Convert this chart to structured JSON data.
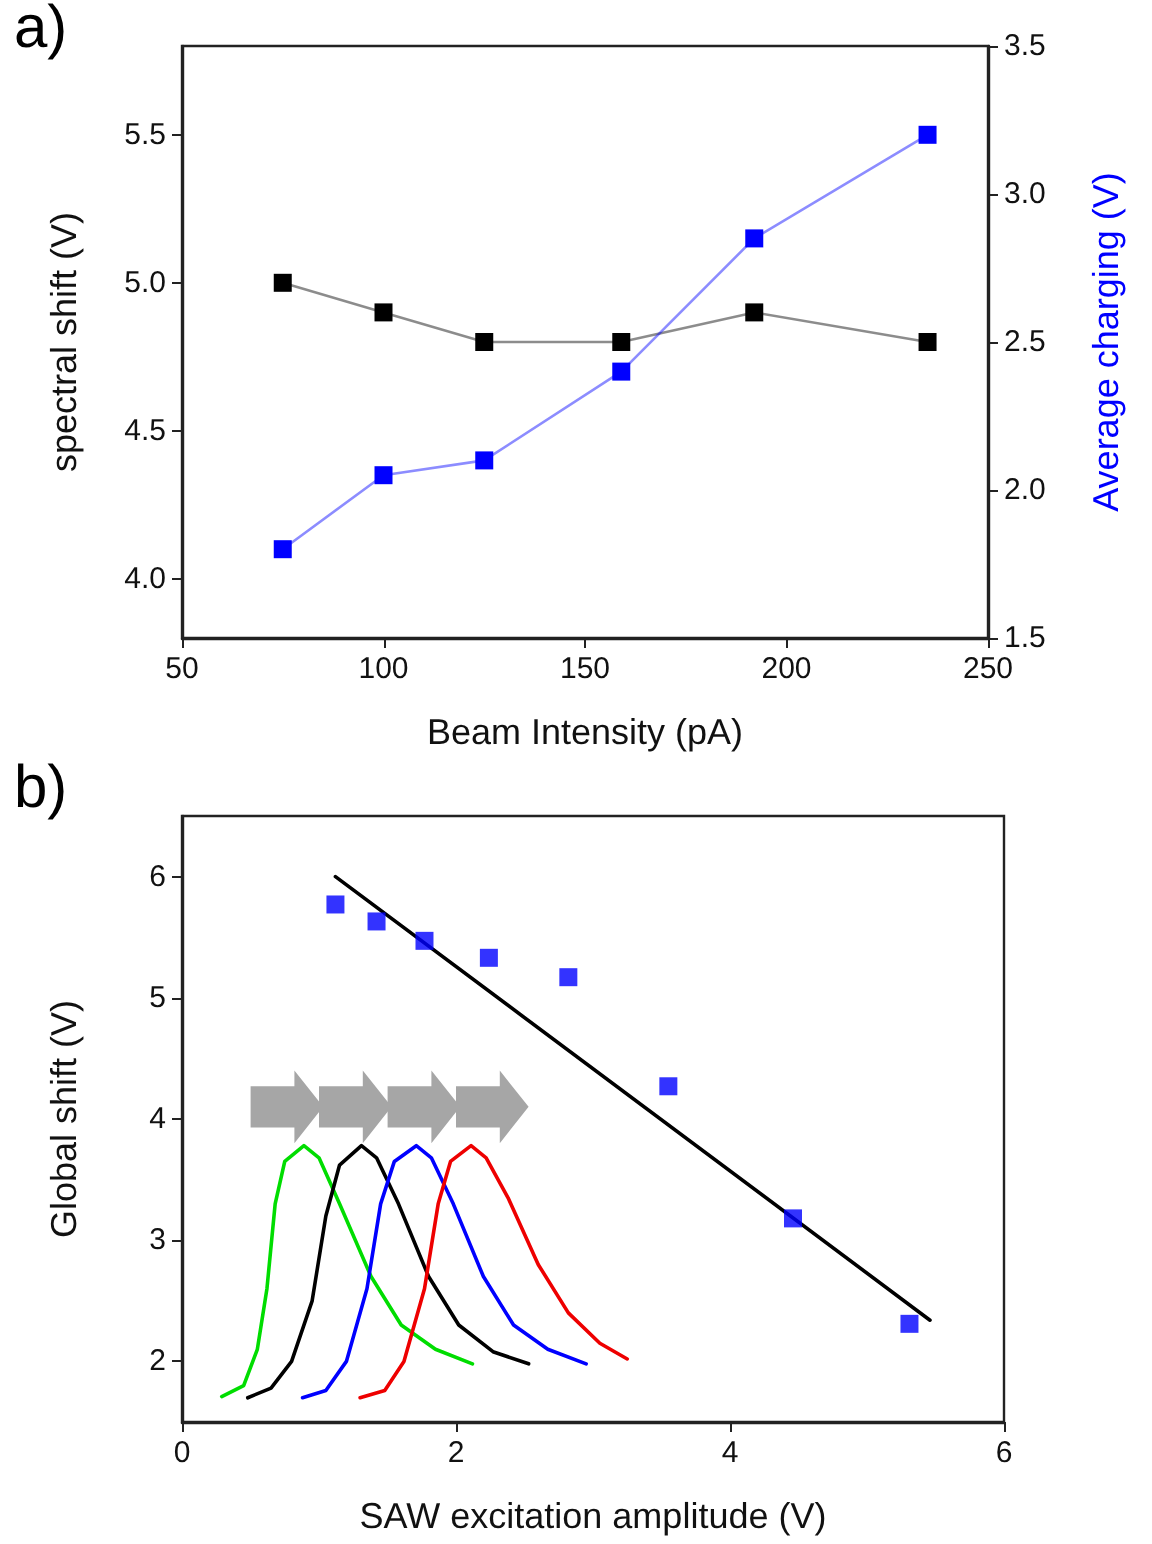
{
  "chart_data": [
    {
      "type": "line",
      "title": "a)",
      "xlabel": "Beam Intensity (pA)",
      "ylabel": "spectral shift (V)",
      "y2label": "Average charging (V)",
      "x": [
        75,
        100,
        125,
        159,
        192,
        235
      ],
      "series": [
        {
          "color": "#000000",
          "values": [
            5.0,
            4.9,
            4.8,
            4.8,
            4.9,
            4.8
          ]
        },
        {
          "color": "#0000ff",
          "axis": "y2",
          "values": [
            1.8,
            2.05,
            2.1,
            2.4,
            2.85,
            3.2
          ]
        }
      ],
      "xlim": [
        50,
        250
      ],
      "xticks": [
        50,
        100,
        150,
        200,
        250
      ],
      "ylim": [
        3.8,
        5.8
      ],
      "yticks": [
        {
          "value": 4,
          "label": "4.0"
        },
        {
          "value": 4.5,
          "label": "4.5"
        },
        {
          "value": 5,
          "label": "5.0"
        },
        {
          "value": 5.5,
          "label": "5.5"
        }
      ],
      "y2lim": [
        1.5,
        3.5
      ],
      "y2ticks": [
        {
          "value": 1.5,
          "label": "1.5"
        },
        {
          "value": 2,
          "label": "2.0"
        },
        {
          "value": 2.5,
          "label": "2.5"
        },
        {
          "value": 3,
          "label": "3.0"
        },
        {
          "value": 3.5,
          "label": "3.5"
        }
      ],
      "marker": "square",
      "grid": false
    },
    {
      "type": "scatter",
      "title": "b)",
      "xlabel": "SAW excitation amplitude (V)",
      "ylabel": "Global shift (V)",
      "series": [
        {
          "color": "#0000ff",
          "x": [
            1.12,
            1.42,
            1.77,
            2.24,
            2.82,
            3.55,
            4.46,
            5.31
          ],
          "values": [
            5.77,
            5.63,
            5.47,
            5.33,
            5.17,
            4.27,
            3.18,
            2.31
          ]
        },
        {
          "type": "line",
          "color": "#000000",
          "marker": "none",
          "x": [
            1.12,
            5.46
          ],
          "values": [
            6.0,
            2.34
          ]
        },
        {
          "type": "line",
          "color": "#00dd00",
          "marker": "none",
          "x": [
            0.29,
            0.45,
            0.55,
            0.62,
            0.68,
            0.75,
            0.89,
            1.0,
            1.15,
            1.38,
            1.6,
            1.85,
            2.12
          ],
          "values": [
            1.71,
            1.8,
            2.1,
            2.6,
            3.3,
            3.65,
            3.78,
            3.68,
            3.3,
            2.7,
            2.3,
            2.1,
            1.98
          ]
        },
        {
          "type": "line",
          "color": "#000000",
          "marker": "none",
          "x": [
            0.48,
            0.65,
            0.8,
            0.95,
            1.05,
            1.15,
            1.31,
            1.42,
            1.58,
            1.8,
            2.02,
            2.27,
            2.53
          ],
          "values": [
            1.7,
            1.78,
            2.0,
            2.5,
            3.2,
            3.62,
            3.78,
            3.68,
            3.3,
            2.7,
            2.3,
            2.08,
            1.98
          ]
        },
        {
          "type": "line",
          "color": "#0000ff",
          "marker": "none",
          "x": [
            0.88,
            1.05,
            1.2,
            1.35,
            1.45,
            1.55,
            1.71,
            1.82,
            1.98,
            2.2,
            2.42,
            2.67,
            2.95
          ],
          "values": [
            1.7,
            1.76,
            2.0,
            2.6,
            3.3,
            3.65,
            3.78,
            3.68,
            3.3,
            2.7,
            2.3,
            2.1,
            1.98
          ]
        },
        {
          "type": "line",
          "color": "#ee0000",
          "marker": "none",
          "x": [
            1.3,
            1.48,
            1.62,
            1.77,
            1.87,
            1.96,
            2.11,
            2.22,
            2.38,
            2.6,
            2.82,
            3.05,
            3.25
          ],
          "values": [
            1.7,
            1.76,
            2.0,
            2.6,
            3.3,
            3.65,
            3.78,
            3.68,
            3.35,
            2.8,
            2.4,
            2.15,
            2.02
          ]
        }
      ],
      "xlim": [
        0,
        6
      ],
      "xticks": [
        0,
        2,
        4,
        6
      ],
      "ylim": [
        1.5,
        6.5
      ],
      "yticks": [
        2,
        3,
        4,
        5,
        6
      ],
      "marker": "square",
      "grid": false
    }
  ]
}
